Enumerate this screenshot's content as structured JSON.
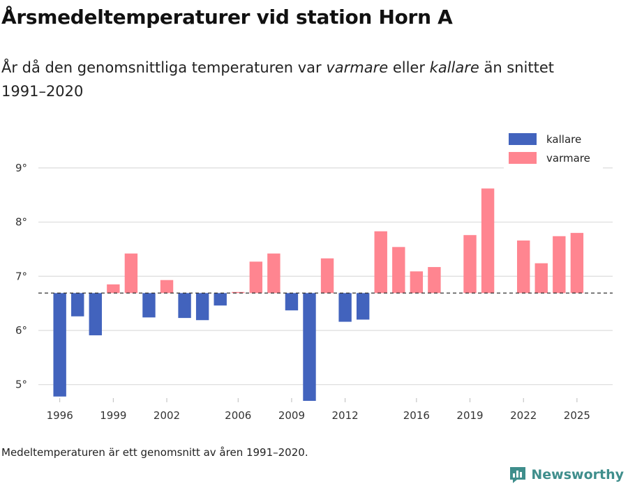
{
  "header": {
    "title": "Årsmedeltemperaturer vid station Horn A",
    "subtitle_pre": "År då den genomsnittliga temperaturen var ",
    "subtitle_warm": "varmare",
    "subtitle_mid": " eller ",
    "subtitle_cold": "kallare",
    "subtitle_post": " än snittet 1991–2020"
  },
  "footer": {
    "caption": "Medeltemperaturen är ett genomsnitt av åren 1991–2020.",
    "brand": "Newsworthy"
  },
  "colors": {
    "cold": "#4263bd",
    "warm": "#ff8590",
    "brand": "#3f8e8c"
  },
  "chart_data": {
    "type": "bar",
    "title": "Årsmedeltemperaturer vid station Horn A",
    "baseline": 6.69,
    "ylim": [
      4.7,
      9.5
    ],
    "yticks": [
      5,
      6,
      7,
      8,
      9
    ],
    "ytick_labels": [
      "5°",
      "6°",
      "7°",
      "8°",
      "9°"
    ],
    "xlim": [
      1994.8,
      2027.0
    ],
    "xticks": [
      1996,
      1999,
      2002,
      2006,
      2009,
      2012,
      2016,
      2019,
      2022,
      2025
    ],
    "legend": {
      "position": "top-right",
      "cold_label": "kallare",
      "warm_label": "varmare"
    },
    "grid": true,
    "years": [
      1996,
      1997,
      1998,
      1999,
      2000,
      2001,
      2002,
      2003,
      2004,
      2005,
      2006,
      2007,
      2008,
      2009,
      2010,
      2011,
      2012,
      2013,
      2014,
      2015,
      2016,
      2017,
      2019,
      2020,
      2022,
      2023,
      2024,
      2025
    ],
    "values": [
      4.78,
      6.26,
      5.91,
      6.85,
      7.42,
      6.24,
      6.93,
      6.23,
      6.19,
      6.46,
      6.71,
      7.27,
      7.42,
      6.37,
      4.7,
      7.33,
      6.16,
      6.2,
      7.83,
      7.54,
      7.09,
      7.17,
      7.76,
      8.62,
      7.66,
      7.24,
      7.74,
      7.8
    ]
  }
}
